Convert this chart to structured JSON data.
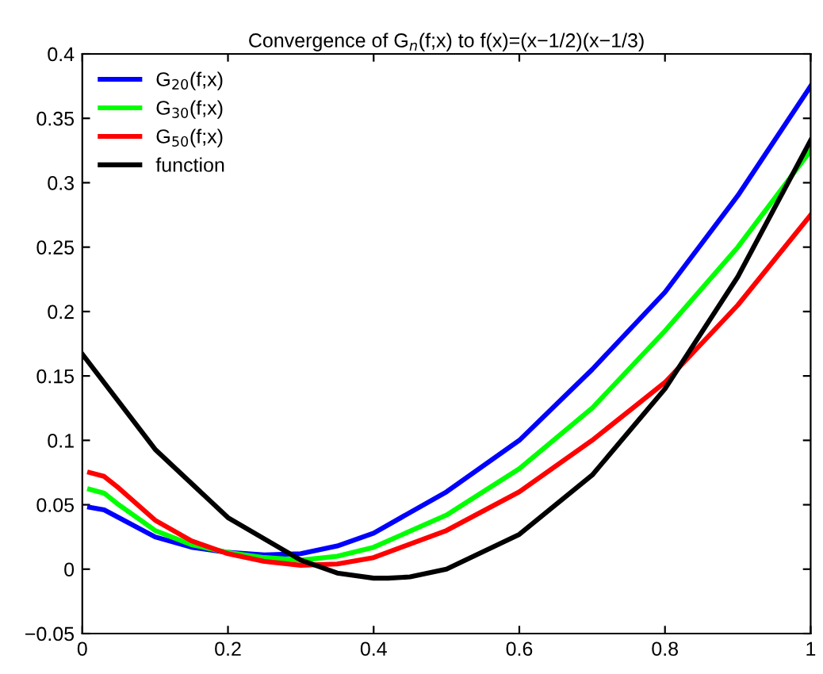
{
  "chart_data": {
    "type": "line",
    "title": "Convergence of G$_{n}$(f;x) to f(x)=(x−1/2)(x−1/3)",
    "xlim": [
      0,
      1
    ],
    "ylim": [
      -0.05,
      0.4
    ],
    "xticks": [
      0,
      0.2,
      0.4,
      0.6,
      0.8,
      1
    ],
    "yticks": [
      -0.05,
      0,
      0.05,
      0.1,
      0.15,
      0.2,
      0.25,
      0.3,
      0.35,
      0.4
    ],
    "grid": false,
    "legend": "top left",
    "line_style": "solid",
    "marker": "none",
    "series": [
      {
        "name": "G$_{20}$(f;x)",
        "color": "#0000ff",
        "x": [
          0.01,
          0.03,
          0.05,
          0.1,
          0.15,
          0.2,
          0.25,
          0.3,
          0.35,
          0.4,
          0.5,
          0.6,
          0.7,
          0.8,
          0.9,
          1.0
        ],
        "values": [
          0.048,
          0.046,
          0.04,
          0.025,
          0.017,
          0.013,
          0.011,
          0.012,
          0.018,
          0.028,
          0.06,
          0.1,
          0.155,
          0.215,
          0.29,
          0.375
        ]
      },
      {
        "name": "G$_{30}$(f;x)",
        "color": "#00ff00",
        "x": [
          0.01,
          0.03,
          0.05,
          0.1,
          0.15,
          0.2,
          0.25,
          0.3,
          0.35,
          0.4,
          0.5,
          0.6,
          0.7,
          0.8,
          0.9,
          1.0
        ],
        "values": [
          0.062,
          0.059,
          0.05,
          0.03,
          0.019,
          0.013,
          0.009,
          0.007,
          0.01,
          0.017,
          0.042,
          0.078,
          0.125,
          0.185,
          0.25,
          0.325
        ]
      },
      {
        "name": "G$_{50}$(f;x)",
        "color": "#ff0000",
        "x": [
          0.01,
          0.03,
          0.05,
          0.1,
          0.15,
          0.2,
          0.25,
          0.3,
          0.35,
          0.4,
          0.5,
          0.6,
          0.7,
          0.8,
          0.9,
          1.0
        ],
        "values": [
          0.075,
          0.072,
          0.063,
          0.038,
          0.022,
          0.012,
          0.006,
          0.003,
          0.004,
          0.009,
          0.03,
          0.06,
          0.1,
          0.145,
          0.205,
          0.275
        ]
      },
      {
        "name": "function",
        "color": "#000000",
        "x": [
          0,
          0.1,
          0.2,
          0.3,
          0.35,
          0.4,
          0.42,
          0.45,
          0.5,
          0.6,
          0.7,
          0.8,
          0.9,
          1.0
        ],
        "values": [
          0.167,
          0.093,
          0.04,
          0.007,
          -0.003,
          -0.007,
          -0.007,
          -0.006,
          0,
          0.027,
          0.073,
          0.14,
          0.227,
          0.333
        ]
      }
    ]
  }
}
